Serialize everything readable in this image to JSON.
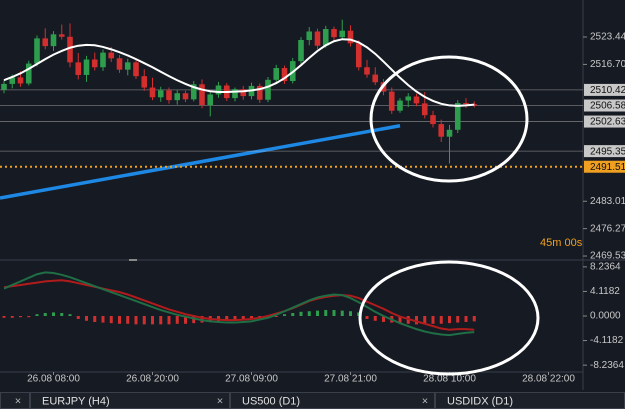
{
  "chart_data": [
    {
      "type": "candlestick",
      "categories": [
        null,
        null,
        null,
        null,
        null,
        null,
        "26.08 08:00",
        null,
        null,
        null,
        null,
        null,
        null,
        null,
        null,
        null,
        null,
        null,
        "26.08 20:00",
        null,
        null,
        null,
        null,
        null,
        null,
        null,
        null,
        null,
        null,
        null,
        "27.08 09:00",
        null,
        null,
        null,
        null,
        null,
        null,
        null,
        null,
        null,
        null,
        null,
        "27.08 21:00",
        null,
        null,
        null,
        null,
        null,
        null,
        null,
        null,
        null,
        null,
        null,
        "28.08 10:00",
        null,
        null,
        null,
        null,
        null,
        null,
        null,
        null,
        null,
        null,
        null,
        "28.08 22:00",
        null,
        null,
        null
      ],
      "open": [
        2510.5,
        2511.9,
        2513.5,
        2512.0,
        2516.9,
        2523.1,
        2521.2,
        2524.1,
        2523.5,
        2517.2,
        2514.1,
        2517.9,
        2516.0,
        2519.6,
        2518.2,
        2515.4,
        2517.2,
        2513.8,
        2511.0,
        2508.6,
        2510.3,
        2507.9,
        2509.6,
        2508.1,
        2511.8,
        2506.7,
        2509.3,
        2511.5,
        2508.4,
        2510.6,
        2508.9,
        2511.4,
        2508.0,
        2512.9,
        2515.8,
        2512.6,
        2517.5,
        2522.7,
        2524.8,
        2521.3,
        2525.4,
        2523.4,
        2525.0,
        2521.9,
        2516.0,
        2514.2,
        2512.3,
        2510.0,
        2505.3,
        2507.8,
        2508.8,
        2507.1,
        2504.2,
        2502.0,
        2498.9,
        2500.6,
        2507.2,
        2506.9,
        null,
        null,
        null,
        null,
        null,
        null,
        null,
        null,
        null,
        null,
        null,
        null
      ],
      "high": [
        2512.8,
        2514.2,
        2515.0,
        2517.6,
        2523.8,
        2525.6,
        2524.9,
        2526.5,
        2526.8,
        2519.5,
        2518.8,
        2519.6,
        2520.4,
        2521.0,
        2519.0,
        2518.1,
        2518.0,
        2515.5,
        2513.4,
        2511.2,
        2511.0,
        2510.5,
        2510.2,
        2512.6,
        2513.0,
        2510.1,
        2512.4,
        2512.1,
        2511.0,
        2511.4,
        2512.2,
        2512.0,
        2513.6,
        2516.6,
        2516.4,
        2518.3,
        2523.4,
        2525.9,
        2525.5,
        2526.2,
        2526.0,
        2527.7,
        2526.3,
        2522.6,
        2517.8,
        2516.0,
        2513.1,
        2511.0,
        2508.4,
        2509.6,
        2509.5,
        2509.9,
        2505.3,
        2503.1,
        2501.8,
        2507.9,
        2508.4,
        2507.6,
        null,
        null,
        null,
        null,
        null,
        null,
        null,
        null,
        null,
        null,
        null,
        null
      ],
      "low": [
        2509.6,
        2510.8,
        2511.2,
        2511.5,
        2516.2,
        2520.4,
        2520.0,
        2522.8,
        2516.0,
        2513.0,
        2512.4,
        2515.2,
        2515.1,
        2517.3,
        2514.6,
        2514.0,
        2513.1,
        2510.2,
        2507.9,
        2507.5,
        2507.0,
        2506.8,
        2507.4,
        2507.6,
        2505.9,
        2503.9,
        2508.5,
        2507.7,
        2507.6,
        2508.0,
        2508.1,
        2507.2,
        2507.4,
        2512.1,
        2511.9,
        2512.0,
        2516.8,
        2521.4,
        2520.5,
        2520.8,
        2522.6,
        2522.8,
        2521.1,
        2515.2,
        2513.4,
        2511.6,
        2509.1,
        2504.5,
        2504.8,
        2506.2,
        2506.4,
        2503.4,
        2501.2,
        2497.6,
        2492.3,
        2499.8,
        2506.0,
        2506.1,
        null,
        null,
        null,
        null,
        null,
        null,
        null,
        null,
        null,
        null,
        null,
        null
      ],
      "close": [
        2511.9,
        2513.5,
        2512.0,
        2516.9,
        2523.1,
        2521.2,
        2524.1,
        2523.5,
        2517.2,
        2514.1,
        2517.9,
        2516.0,
        2519.6,
        2518.2,
        2515.4,
        2517.2,
        2513.8,
        2511.0,
        2508.6,
        2510.3,
        2507.9,
        2509.6,
        2508.1,
        2511.8,
        2506.7,
        2509.3,
        2511.5,
        2508.4,
        2510.6,
        2508.9,
        2511.4,
        2508.0,
        2512.9,
        2515.8,
        2512.6,
        2517.5,
        2522.7,
        2524.8,
        2521.3,
        2525.4,
        2523.4,
        2525.0,
        2521.9,
        2516.0,
        2514.2,
        2512.3,
        2510.0,
        2505.3,
        2507.8,
        2508.8,
        2507.1,
        2504.2,
        2502.0,
        2498.9,
        2500.6,
        2507.2,
        2506.9,
        2506.58,
        null,
        null,
        null,
        null,
        null,
        null,
        null,
        null,
        null,
        null,
        null,
        null
      ],
      "up_color": "#2e9e4e",
      "down_color": "#d32f2f",
      "series": [
        {
          "color": "#ffffff",
          "values": [
            2512.8,
            2513.6,
            2514.5,
            2515.6,
            2516.8,
            2518.0,
            2519.1,
            2520.0,
            2520.8,
            2521.3,
            2521.5,
            2521.4,
            2521.0,
            2520.4,
            2519.7,
            2518.9,
            2518.0,
            2517.0,
            2516.0,
            2514.9,
            2513.8,
            2512.8,
            2511.9,
            2511.1,
            2510.5,
            2510.1,
            2509.9,
            2509.9,
            2510.0,
            2510.1,
            2510.3,
            2510.6,
            2511.2,
            2512.1,
            2513.3,
            2514.8,
            2516.5,
            2518.3,
            2520.0,
            2521.4,
            2522.4,
            2522.9,
            2522.8,
            2522.1,
            2520.9,
            2519.3,
            2517.4,
            2515.4,
            2513.4,
            2511.6,
            2510.0,
            2508.7,
            2507.7,
            2507.0,
            2506.6,
            2506.5,
            2506.6,
            2506.8,
            null,
            null,
            null,
            null,
            null,
            null,
            null,
            null,
            null,
            null,
            null,
            null
          ]
        }
      ],
      "trendline": {
        "color": "#1e88e5",
        "start": 2483.8,
        "end": 2501.6
      },
      "ylim": [
        2468.55,
        2532.55
      ],
      "yticks": [
        2523.44,
        {
          "value": 2516.7,
          "label": "2516.70"
        },
        2483.01,
        2476.27,
        2469.53
      ],
      "price_lines": [
        {
          "value": 2510.42,
          "color": "#c8c8c8"
        },
        {
          "value": 2506.58,
          "color": "#c8c8c8"
        },
        {
          "value": 2502.63,
          "color": "#c8c8c8"
        },
        {
          "value": 2495.35,
          "color": "#c8c8c8"
        },
        {
          "value": 2491.51,
          "color": "#f0a020",
          "style": "dotted"
        }
      ],
      "countdown": "45m 00s"
    },
    {
      "type": "macd",
      "histogram": [
        -0.3,
        -0.3,
        -0.2,
        -0.2,
        0.3,
        0.5,
        0.6,
        0.5,
        0.3,
        -0.5,
        -0.8,
        -1.0,
        -1.1,
        -1.2,
        -1.3,
        -1.3,
        -1.4,
        -1.4,
        -1.4,
        -1.4,
        -1.4,
        -1.3,
        -1.3,
        -1.2,
        -1.1,
        -1.0,
        -0.9,
        -0.8,
        -0.6,
        -0.5,
        -0.4,
        -0.3,
        -0.2,
        -0.1,
        0.3,
        0.5,
        0.7,
        0.8,
        0.9,
        1.0,
        1.0,
        0.9,
        0.8,
        0.6,
        -0.5,
        -0.8,
        -1.0,
        -1.1,
        -1.2,
        -1.3,
        -1.4,
        -1.4,
        -1.3,
        -1.3,
        -1.2,
        -1.1,
        -1.0,
        -0.9,
        null,
        null,
        null,
        null,
        null,
        null,
        null,
        null,
        null,
        null,
        null,
        null
      ],
      "positive_color": "#2e9e4e",
      "negative_color": "#d32f2f",
      "series": [
        {
          "color": "#b01c1c",
          "values": [
            4.8,
            5.0,
            5.2,
            5.4,
            5.6,
            5.8,
            5.9,
            6.0,
            5.8,
            5.5,
            5.2,
            4.9,
            4.6,
            4.3,
            4.0,
            3.6,
            3.1,
            2.6,
            2.1,
            1.6,
            1.1,
            0.7,
            0.3,
            0.0,
            -0.3,
            -0.5,
            -0.6,
            -0.7,
            -0.7,
            -0.6,
            -0.5,
            -0.3,
            0.0,
            0.4,
            0.8,
            1.3,
            1.9,
            2.5,
            2.9,
            3.2,
            3.4,
            3.5,
            3.4,
            3.0,
            2.4,
            1.8,
            1.2,
            0.5,
            -0.1,
            -0.5,
            -0.9,
            -1.3,
            -1.7,
            -2.1,
            -2.3,
            -2.2,
            -2.2,
            -2.3,
            null,
            null,
            null,
            null,
            null,
            null,
            null,
            null,
            null,
            null,
            null,
            null
          ]
        },
        {
          "color": "#1f6e45",
          "values": [
            4.6,
            5.2,
            5.8,
            6.4,
            7.0,
            7.3,
            7.2,
            6.9,
            6.5,
            6.0,
            5.5,
            5.0,
            4.5,
            4.0,
            3.5,
            3.0,
            2.5,
            2.0,
            1.5,
            1.0,
            0.6,
            0.2,
            -0.1,
            -0.4,
            -0.7,
            -0.9,
            -1.0,
            -1.1,
            -1.1,
            -1.0,
            -0.9,
            -0.6,
            -0.3,
            0.2,
            0.8,
            1.4,
            2.0,
            2.6,
            3.1,
            3.4,
            3.6,
            3.5,
            3.0,
            2.3,
            1.5,
            0.7,
            0.0,
            -0.6,
            -1.2,
            -1.7,
            -2.2,
            -2.6,
            -2.9,
            -3.1,
            -3.2,
            -3.0,
            -2.8,
            -2.7,
            null,
            null,
            null,
            null,
            null,
            null,
            null,
            null,
            null,
            null,
            null,
            null
          ]
        }
      ],
      "ylim": [
        -9.05,
        9.05
      ],
      "yticks": [
        8.2364,
        4.1182,
        {
          "value": 0,
          "label": "0.0000"
        },
        -4.1182,
        -8.2364
      ]
    }
  ],
  "tabs": [
    {
      "close": "×"
    },
    {
      "label": "EURJPY (H4)",
      "close": "×"
    },
    {
      "label": "US500 (D1)",
      "close": "×"
    },
    {
      "label": "USDIDX (D1)"
    }
  ]
}
